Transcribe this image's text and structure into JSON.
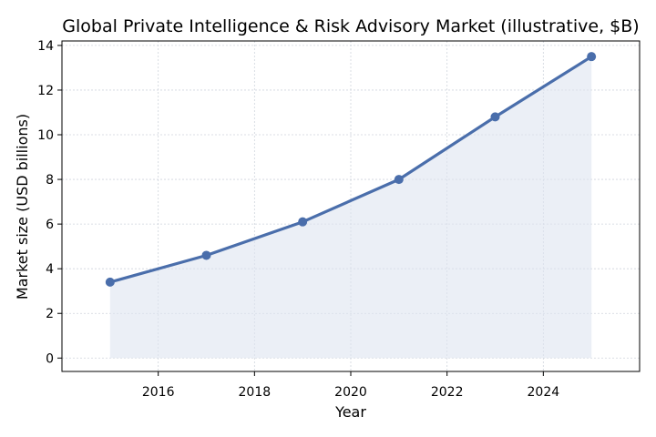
{
  "chart_data": {
    "type": "line",
    "title": "Global Private Intelligence & Risk Advisory Market (illustrative, $B)",
    "xlabel": "Year",
    "ylabel": "Market size (USD billions)",
    "x": [
      2015,
      2017,
      2019,
      2021,
      2023,
      2025
    ],
    "series": [
      {
        "values": [
          3.4,
          4.6,
          6.1,
          8.0,
          10.8,
          13.5
        ]
      }
    ],
    "xlim": [
      2014,
      2026
    ],
    "ylim": [
      -0.6,
      14.2
    ],
    "xticks": [
      2016,
      2018,
      2020,
      2022,
      2024
    ],
    "yticks": [
      0,
      2,
      4,
      6,
      8,
      10,
      12,
      14
    ],
    "grid": true,
    "fill_under": true,
    "colors": {
      "line": "#4a6eab",
      "fill": "#dde4f0",
      "grid": "#cfd4dc"
    }
  }
}
